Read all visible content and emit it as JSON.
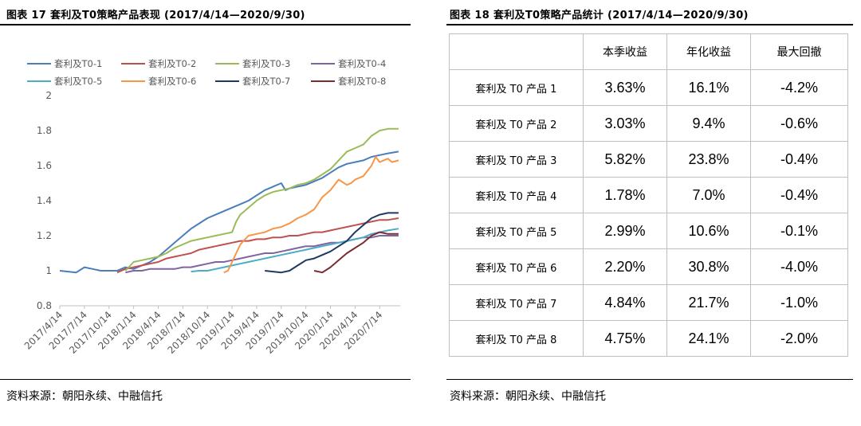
{
  "left": {
    "title": "图表 17  套利及T0策略产品表现 (2017/4/14—2020/9/30)",
    "source": "资料来源：朝阳永续、中融信托"
  },
  "right": {
    "title": "图表 18  套利及T0策略产品统计 (2017/4/14—2020/9/30)",
    "source": "资料来源：朝阳永续、中融信托",
    "table": {
      "headers": [
        "",
        "本季收益",
        "年化收益",
        "最大回撤"
      ],
      "rows": [
        [
          "套利及 T0 产品 1",
          "3.63%",
          "16.1%",
          "-4.2%"
        ],
        [
          "套利及 T0 产品 2",
          "3.03%",
          "9.4%",
          "-0.6%"
        ],
        [
          "套利及 T0 产品 3",
          "5.82%",
          "23.8%",
          "-0.4%"
        ],
        [
          "套利及 T0 产品 4",
          "1.78%",
          "7.0%",
          "-0.4%"
        ],
        [
          "套利及 T0 产品 5",
          "2.99%",
          "10.6%",
          "-0.1%"
        ],
        [
          "套利及 T0 产品 6",
          "2.20%",
          "30.8%",
          "-4.0%"
        ],
        [
          "套利及 T0 产品 7",
          "4.84%",
          "21.7%",
          "-1.0%"
        ],
        [
          "套利及 T0 产品 8",
          "4.75%",
          "24.1%",
          "-2.0%"
        ]
      ]
    }
  },
  "chart_data": [
    {
      "type": "line",
      "title": "",
      "xlabel": "",
      "ylabel": "",
      "ylim": [
        0.8,
        2.0
      ],
      "yticks": [
        "0.8",
        "1",
        "1.2",
        "1.4",
        "1.6",
        "1.8",
        "2"
      ],
      "xticks": [
        "2017/4/14",
        "2017/7/14",
        "2017/10/14",
        "2018/1/14",
        "2018/4/14",
        "2018/7/14",
        "2018/10/14",
        "2019/1/14",
        "2019/4/14",
        "2019/7/14",
        "2019/10/14",
        "2020/1/14",
        "2020/4/14",
        "2020/7/14"
      ],
      "x_unit": "months since 2017/4/14",
      "xlim": [
        0,
        41.5
      ],
      "grid": false,
      "legend": "top",
      "series": [
        {
          "name": "套利及T0-1",
          "color": "#4a7ebb",
          "points": [
            [
              0,
              1.0
            ],
            [
              2,
              0.99
            ],
            [
              3,
              1.02
            ],
            [
              4,
              1.01
            ],
            [
              5,
              1.0
            ],
            [
              7,
              1.0
            ],
            [
              8,
              1.02
            ],
            [
              9,
              1.01
            ],
            [
              10,
              1.03
            ],
            [
              11,
              1.05
            ],
            [
              12,
              1.08
            ],
            [
              13,
              1.12
            ],
            [
              14,
              1.16
            ],
            [
              15,
              1.2
            ],
            [
              16,
              1.24
            ],
            [
              17,
              1.27
            ],
            [
              18,
              1.3
            ],
            [
              19,
              1.32
            ],
            [
              20,
              1.34
            ],
            [
              21,
              1.36
            ],
            [
              22,
              1.38
            ],
            [
              23,
              1.4
            ],
            [
              24,
              1.43
            ],
            [
              25,
              1.46
            ],
            [
              26,
              1.48
            ],
            [
              27,
              1.5
            ],
            [
              27.5,
              1.46
            ],
            [
              28,
              1.47
            ],
            [
              29,
              1.48
            ],
            [
              30,
              1.49
            ],
            [
              31,
              1.51
            ],
            [
              32,
              1.53
            ],
            [
              33,
              1.56
            ],
            [
              34,
              1.59
            ],
            [
              35,
              1.61
            ],
            [
              36,
              1.62
            ],
            [
              37,
              1.63
            ],
            [
              38,
              1.65
            ],
            [
              39,
              1.66
            ],
            [
              40,
              1.67
            ],
            [
              41.3,
              1.68
            ]
          ]
        },
        {
          "name": "套利及T0-2",
          "color": "#c0504d",
          "points": [
            [
              7,
              0.99
            ],
            [
              8,
              1.01
            ],
            [
              9,
              1.02
            ],
            [
              10,
              1.03
            ],
            [
              11,
              1.04
            ],
            [
              12,
              1.05
            ],
            [
              13,
              1.07
            ],
            [
              14,
              1.08
            ],
            [
              15,
              1.09
            ],
            [
              16,
              1.1
            ],
            [
              17,
              1.12
            ],
            [
              18,
              1.13
            ],
            [
              19,
              1.14
            ],
            [
              20,
              1.15
            ],
            [
              21,
              1.16
            ],
            [
              22,
              1.17
            ],
            [
              23,
              1.17
            ],
            [
              24,
              1.18
            ],
            [
              25,
              1.18
            ],
            [
              26,
              1.19
            ],
            [
              27,
              1.19
            ],
            [
              28,
              1.2
            ],
            [
              29,
              1.2
            ],
            [
              30,
              1.21
            ],
            [
              31,
              1.22
            ],
            [
              32,
              1.22
            ],
            [
              33,
              1.23
            ],
            [
              34,
              1.24
            ],
            [
              35,
              1.25
            ],
            [
              36,
              1.26
            ],
            [
              37,
              1.27
            ],
            [
              38,
              1.28
            ],
            [
              39,
              1.29
            ],
            [
              40,
              1.29
            ],
            [
              41.3,
              1.3
            ]
          ]
        },
        {
          "name": "套利及T0-3",
          "color": "#9bbb59",
          "points": [
            [
              8,
              1.0
            ],
            [
              9,
              1.05
            ],
            [
              10,
              1.06
            ],
            [
              11,
              1.07
            ],
            [
              12,
              1.08
            ],
            [
              13,
              1.1
            ],
            [
              14,
              1.13
            ],
            [
              15,
              1.15
            ],
            [
              16,
              1.17
            ],
            [
              17,
              1.18
            ],
            [
              18,
              1.19
            ],
            [
              19,
              1.2
            ],
            [
              20,
              1.21
            ],
            [
              21,
              1.22
            ],
            [
              21.5,
              1.28
            ],
            [
              22,
              1.32
            ],
            [
              23,
              1.36
            ],
            [
              24,
              1.4
            ],
            [
              25,
              1.43
            ],
            [
              26,
              1.45
            ],
            [
              27,
              1.46
            ],
            [
              28,
              1.47
            ],
            [
              29,
              1.49
            ],
            [
              30,
              1.5
            ],
            [
              31,
              1.52
            ],
            [
              32,
              1.55
            ],
            [
              33,
              1.58
            ],
            [
              34,
              1.63
            ],
            [
              35,
              1.68
            ],
            [
              36,
              1.7
            ],
            [
              37,
              1.72
            ],
            [
              38,
              1.77
            ],
            [
              39,
              1.8
            ],
            [
              40,
              1.81
            ],
            [
              41.3,
              1.81
            ]
          ]
        },
        {
          "name": "套利及T0-4",
          "color": "#8064a2",
          "points": [
            [
              8,
              0.99
            ],
            [
              9,
              1.0
            ],
            [
              10,
              1.0
            ],
            [
              11,
              1.01
            ],
            [
              12,
              1.01
            ],
            [
              13,
              1.01
            ],
            [
              14,
              1.01
            ],
            [
              15,
              1.02
            ],
            [
              16,
              1.02
            ],
            [
              17,
              1.03
            ],
            [
              18,
              1.04
            ],
            [
              19,
              1.05
            ],
            [
              20,
              1.05
            ],
            [
              21,
              1.06
            ],
            [
              22,
              1.07
            ],
            [
              23,
              1.08
            ],
            [
              24,
              1.09
            ],
            [
              25,
              1.1
            ],
            [
              26,
              1.1
            ],
            [
              27,
              1.11
            ],
            [
              28,
              1.12
            ],
            [
              29,
              1.13
            ],
            [
              30,
              1.14
            ],
            [
              31,
              1.14
            ],
            [
              32,
              1.15
            ],
            [
              33,
              1.16
            ],
            [
              34,
              1.16
            ],
            [
              35,
              1.17
            ],
            [
              36,
              1.18
            ],
            [
              37,
              1.19
            ],
            [
              38,
              1.19
            ],
            [
              39,
              1.2
            ],
            [
              40,
              1.2
            ],
            [
              41.3,
              1.2
            ]
          ]
        },
        {
          "name": "套利及T0-5",
          "color": "#4bacc6",
          "points": [
            [
              16,
              0.995
            ],
            [
              17,
              1.0
            ],
            [
              18,
              1.0
            ],
            [
              19,
              1.01
            ],
            [
              20,
              1.02
            ],
            [
              21,
              1.03
            ],
            [
              22,
              1.04
            ],
            [
              23,
              1.05
            ],
            [
              24,
              1.06
            ],
            [
              25,
              1.07
            ],
            [
              26,
              1.08
            ],
            [
              27,
              1.09
            ],
            [
              28,
              1.1
            ],
            [
              29,
              1.11
            ],
            [
              30,
              1.12
            ],
            [
              31,
              1.13
            ],
            [
              32,
              1.14
            ],
            [
              33,
              1.15
            ],
            [
              34,
              1.16
            ],
            [
              35,
              1.17
            ],
            [
              36,
              1.18
            ],
            [
              37,
              1.19
            ],
            [
              38,
              1.21
            ],
            [
              39,
              1.22
            ],
            [
              40,
              1.23
            ],
            [
              41.3,
              1.24
            ]
          ]
        },
        {
          "name": "套利及T0-6",
          "color": "#f79646",
          "points": [
            [
              20,
              0.99
            ],
            [
              20.5,
              1.0
            ],
            [
              21,
              1.05
            ],
            [
              22,
              1.15
            ],
            [
              23,
              1.2
            ],
            [
              24,
              1.21
            ],
            [
              25,
              1.22
            ],
            [
              26,
              1.24
            ],
            [
              27,
              1.25
            ],
            [
              28,
              1.27
            ],
            [
              29,
              1.3
            ],
            [
              30,
              1.32
            ],
            [
              31,
              1.35
            ],
            [
              32,
              1.42
            ],
            [
              33,
              1.46
            ],
            [
              34,
              1.52
            ],
            [
              35,
              1.49
            ],
            [
              35.5,
              1.5
            ],
            [
              36,
              1.52
            ],
            [
              37,
              1.54
            ],
            [
              38,
              1.6
            ],
            [
              38.5,
              1.65
            ],
            [
              39,
              1.62
            ],
            [
              40,
              1.64
            ],
            [
              40.5,
              1.62
            ],
            [
              41.3,
              1.63
            ]
          ]
        },
        {
          "name": "套利及T0-7",
          "color": "#1f3864",
          "points": [
            [
              25,
              1.0
            ],
            [
              27,
              0.99
            ],
            [
              28,
              1.0
            ],
            [
              29,
              1.03
            ],
            [
              30,
              1.06
            ],
            [
              31,
              1.07
            ],
            [
              32,
              1.09
            ],
            [
              33,
              1.11
            ],
            [
              34,
              1.14
            ],
            [
              35,
              1.17
            ],
            [
              36,
              1.22
            ],
            [
              37,
              1.26
            ],
            [
              38,
              1.3
            ],
            [
              39,
              1.32
            ],
            [
              40,
              1.33
            ],
            [
              41.3,
              1.33
            ]
          ]
        },
        {
          "name": "套利及T0-8",
          "color": "#7b2c2c",
          "points": [
            [
              31,
              1.0
            ],
            [
              32,
              0.99
            ],
            [
              33,
              1.02
            ],
            [
              34,
              1.06
            ],
            [
              35,
              1.1
            ],
            [
              36,
              1.13
            ],
            [
              37,
              1.16
            ],
            [
              38,
              1.2
            ],
            [
              39,
              1.22
            ],
            [
              40,
              1.21
            ],
            [
              41.3,
              1.21
            ]
          ]
        }
      ]
    },
    {
      "type": "table",
      "title": "",
      "columns": [
        "",
        "本季收益",
        "年化收益",
        "最大回撤"
      ],
      "rows": [
        [
          "套利及 T0 产品 1",
          "3.63%",
          "16.1%",
          "-4.2%"
        ],
        [
          "套利及 T0 产品 2",
          "3.03%",
          "9.4%",
          "-0.6%"
        ],
        [
          "套利及 T0 产品 3",
          "5.82%",
          "23.8%",
          "-0.4%"
        ],
        [
          "套利及 T0 产品 4",
          "1.78%",
          "7.0%",
          "-0.4%"
        ],
        [
          "套利及 T0 产品 5",
          "2.99%",
          "10.6%",
          "-0.1%"
        ],
        [
          "套利及 T0 产品 6",
          "2.20%",
          "30.8%",
          "-4.0%"
        ],
        [
          "套利及 T0 产品 7",
          "4.84%",
          "21.7%",
          "-1.0%"
        ],
        [
          "套利及 T0 产品 8",
          "4.75%",
          "24.1%",
          "-2.0%"
        ]
      ]
    }
  ]
}
